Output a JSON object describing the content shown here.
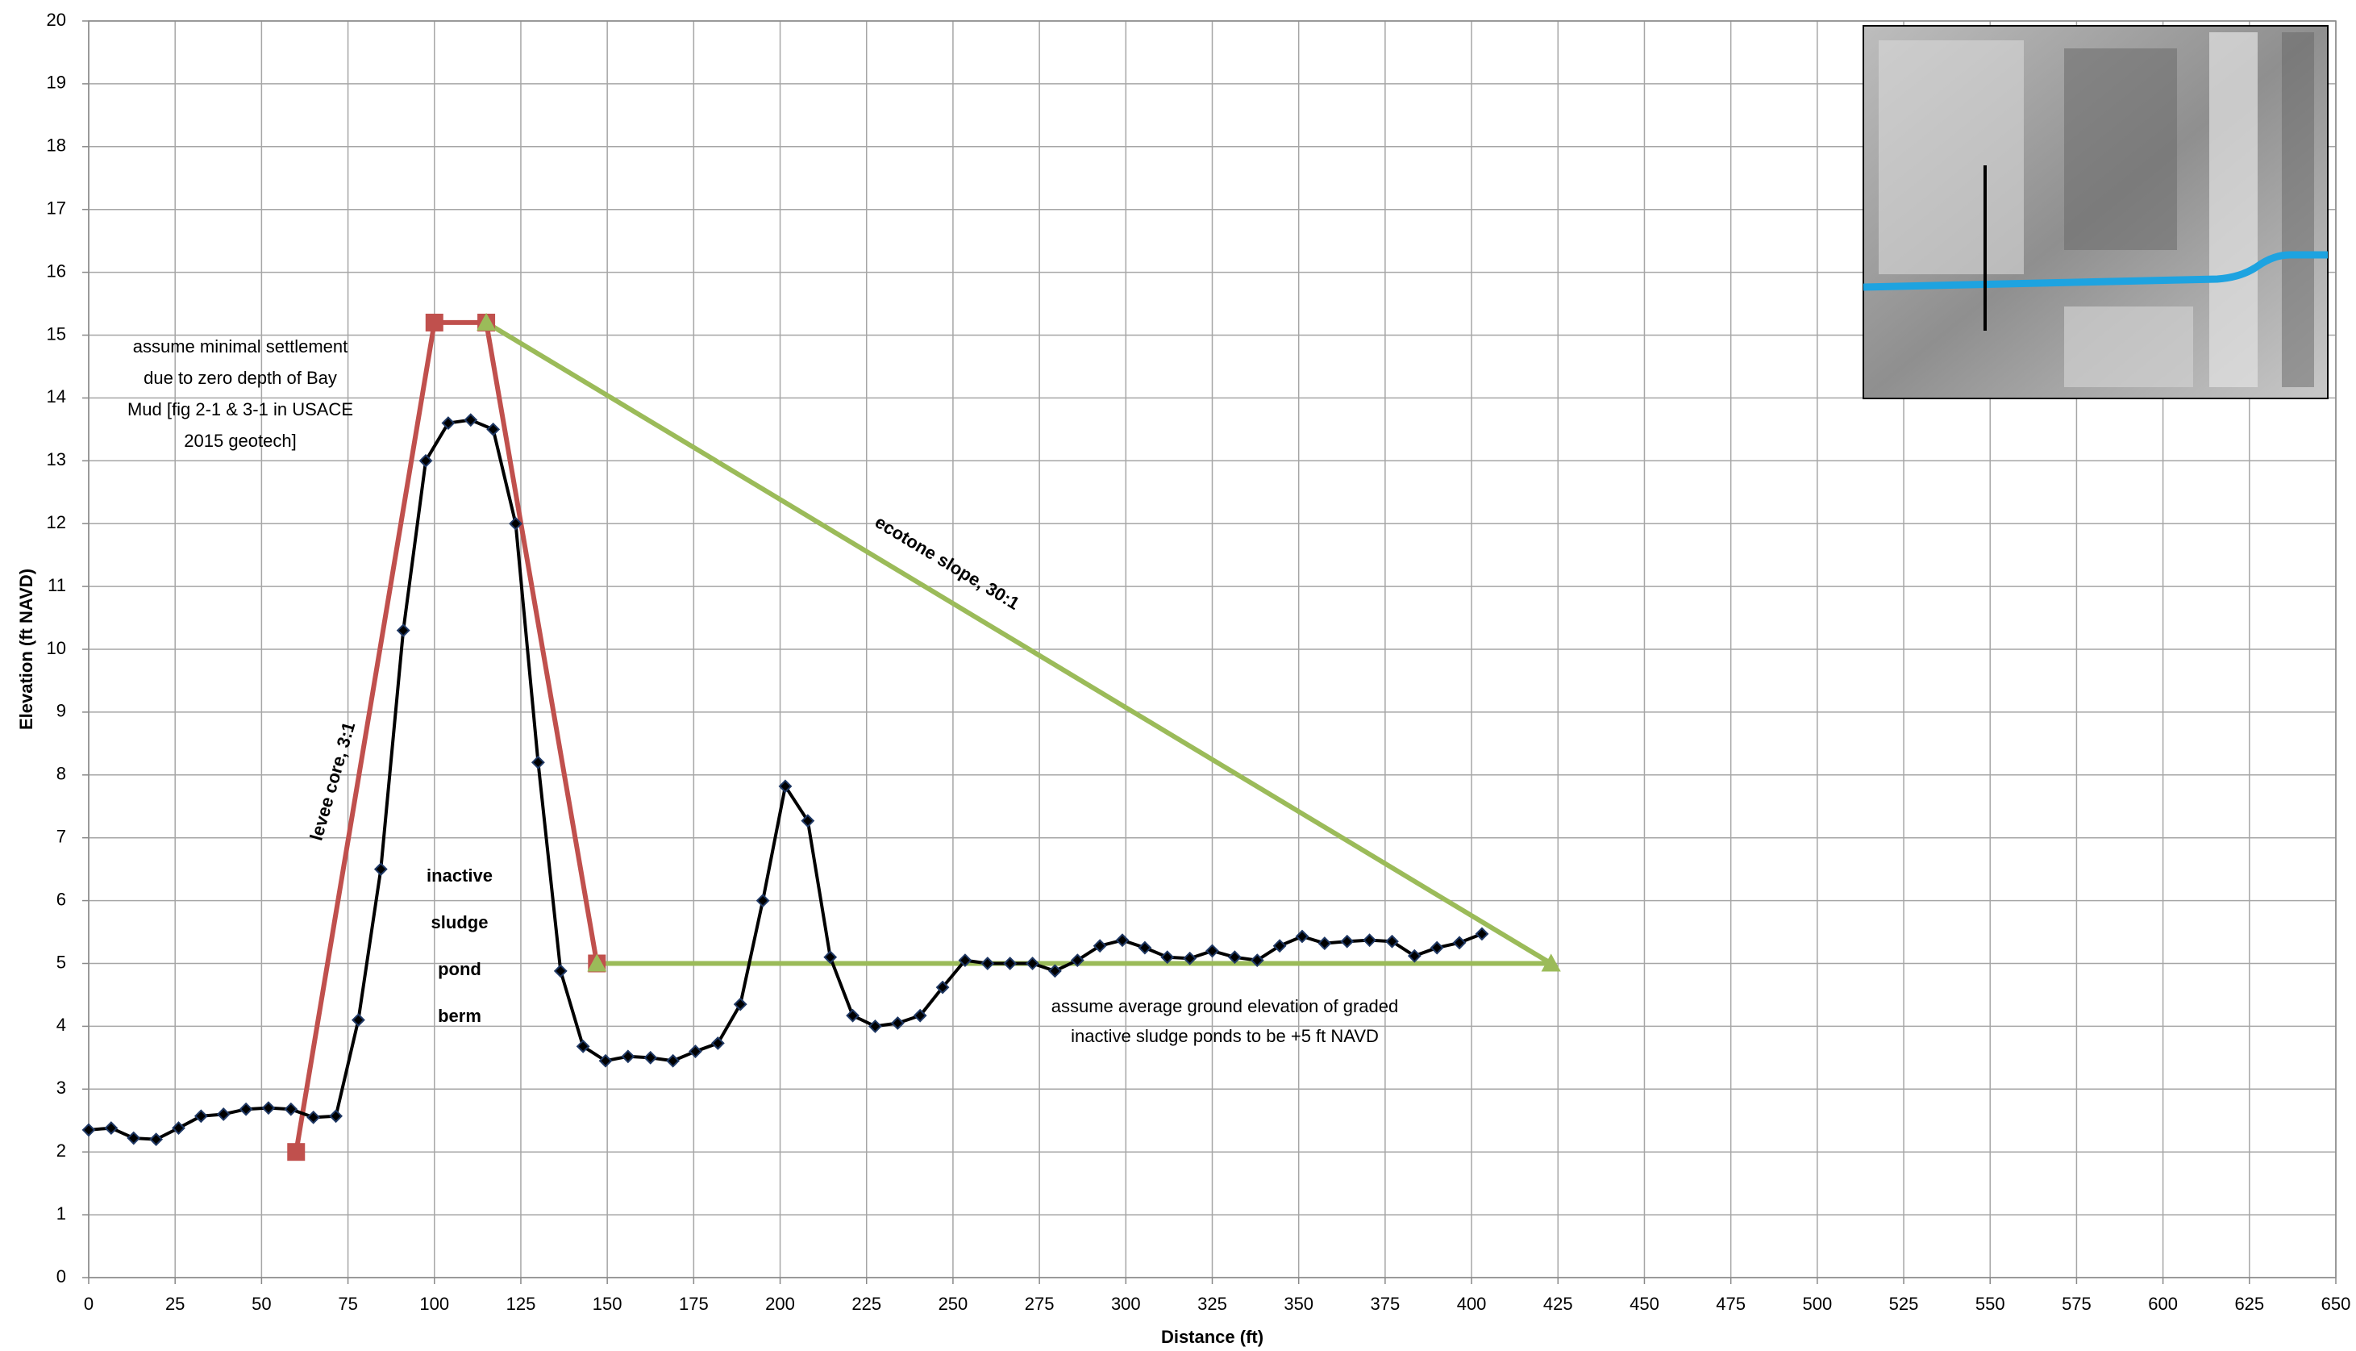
{
  "chart_data": {
    "type": "line",
    "x_label": "Distance (ft)",
    "y_label": "Elevation (ft NAVD)",
    "xlim": [
      0,
      650
    ],
    "xticks": [
      0,
      25,
      50,
      75,
      100,
      125,
      150,
      175,
      200,
      225,
      250,
      275,
      300,
      325,
      350,
      375,
      400,
      425,
      450,
      475,
      500,
      525,
      550,
      575,
      600,
      625,
      650
    ],
    "ylim": [
      0,
      20
    ],
    "yticks": [
      0,
      1,
      2,
      3,
      4,
      5,
      6,
      7,
      8,
      9,
      10,
      11,
      12,
      13,
      14,
      15,
      16,
      17,
      18,
      19,
      20
    ],
    "grid": true,
    "series": [
      {
        "color": "#000000",
        "marker": "diamond",
        "x": [
          0,
          6.5,
          13,
          19.5,
          26,
          32.5,
          39,
          45.5,
          52,
          58.5,
          65,
          71.5,
          78,
          84.5,
          91,
          97.5,
          104,
          110.5,
          117,
          123.5,
          130,
          136.5,
          143,
          149.5,
          156,
          162.5,
          169,
          175.5,
          182,
          188.5,
          195,
          201.5,
          208,
          214.5,
          221,
          227.5,
          234,
          240.5,
          247,
          253.5,
          260,
          266.5,
          273,
          279.5,
          286,
          292.5,
          299,
          305.5,
          312,
          318.5,
          325,
          331.5,
          338,
          344.5,
          351,
          357.5,
          364,
          370.5,
          377,
          383.5,
          390,
          396.5,
          403
        ],
        "values": [
          2.35,
          2.38,
          2.22,
          2.2,
          2.38,
          2.57,
          2.6,
          2.68,
          2.7,
          2.68,
          2.55,
          2.57,
          4.1,
          6.5,
          10.3,
          13.0,
          13.6,
          13.65,
          13.5,
          12.0,
          8.2,
          4.88,
          3.68,
          3.45,
          3.52,
          3.5,
          3.45,
          3.6,
          3.73,
          4.35,
          6.0,
          7.82,
          7.27,
          5.1,
          4.17,
          4.0,
          4.05,
          4.17,
          4.62,
          5.05,
          5.0,
          5.0,
          5.0,
          4.88,
          5.05,
          5.28,
          5.37,
          5.25,
          5.1,
          5.08,
          5.2,
          5.1,
          5.05,
          5.28,
          5.43,
          5.32,
          5.35,
          5.37,
          5.35,
          5.12,
          5.25,
          5.33,
          5.47
        ]
      },
      {
        "color": "#c0504d",
        "marker": "square",
        "x": [
          60,
          100,
          115,
          147
        ],
        "values": [
          2,
          15.2,
          15.2,
          5
        ]
      },
      {
        "color": "#9bbb59",
        "marker": "triangle",
        "x": [
          115,
          423
        ],
        "values": [
          15.2,
          5
        ]
      },
      {
        "color": "#9bbb59",
        "marker": "triangle",
        "x": [
          147,
          423
        ],
        "values": [
          5,
          5
        ]
      }
    ],
    "annotations": [
      {
        "lines": [
          "assume minimal settlement",
          "due to zero  depth of Bay",
          "Mud  [fig 2-1 & 3-1 in USACE",
          "2015 geotech]"
        ]
      },
      {
        "lines": [
          "inactive",
          "sludge",
          "pond",
          "berm"
        ]
      },
      {
        "lines": [
          "assume average ground elevation of graded",
          "inactive sludge  ponds to be +5 ft NAVD"
        ]
      },
      {
        "lines": [
          "levee core, 3:1"
        ],
        "color": "#c0504d"
      },
      {
        "lines": [
          "ecotone slope, 30:1"
        ],
        "color": "#9bbb59"
      }
    ]
  }
}
